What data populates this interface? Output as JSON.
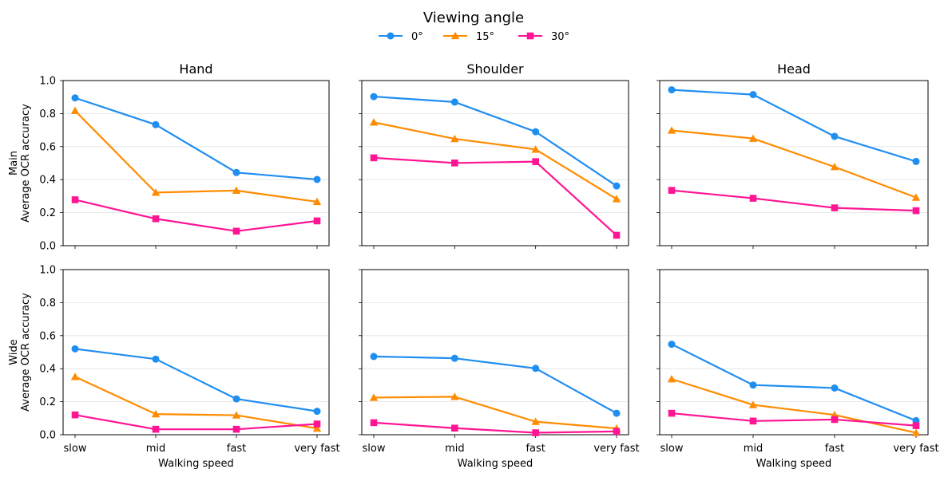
{
  "legend": {
    "title": "Viewing angle",
    "entries": [
      {
        "label": "0°",
        "color": "#1f8ef1",
        "marker": "circle"
      },
      {
        "label": "15°",
        "color": "#ff8c00",
        "marker": "triangle"
      },
      {
        "label": "30°",
        "color": "#ff1493",
        "marker": "square"
      }
    ]
  },
  "chart_data": {
    "type": "line",
    "title": "Viewing angle",
    "categories": [
      "slow",
      "mid",
      "fast",
      "very fast"
    ],
    "xlabel": "Walking speed",
    "ylim": [
      0,
      1
    ],
    "yticks": [
      "0.0",
      "0.2",
      "0.4",
      "0.6",
      "0.8",
      "1.0"
    ],
    "columns": [
      "Hand",
      "Shoulder",
      "Head"
    ],
    "rows": [
      {
        "name": "Main",
        "ylabel": "Average OCR accuracy"
      },
      {
        "name": "Wide",
        "ylabel": "Average OCR accuracy"
      }
    ],
    "panels": [
      {
        "row": "Main",
        "column": "Hand",
        "series": [
          {
            "name": "0°",
            "values": [
              0.895,
              0.733,
              0.443,
              0.401
            ]
          },
          {
            "name": "15°",
            "values": [
              0.817,
              0.322,
              0.334,
              0.266
            ]
          },
          {
            "name": "30°",
            "values": [
              0.278,
              0.163,
              0.088,
              0.15
            ]
          }
        ]
      },
      {
        "row": "Main",
        "column": "Shoulder",
        "series": [
          {
            "name": "0°",
            "values": [
              0.903,
              0.87,
              0.69,
              0.362
            ]
          },
          {
            "name": "15°",
            "values": [
              0.747,
              0.647,
              0.583,
              0.283
            ]
          },
          {
            "name": "30°",
            "values": [
              0.532,
              0.501,
              0.509,
              0.063
            ]
          }
        ]
      },
      {
        "row": "Main",
        "column": "Head",
        "series": [
          {
            "name": "0°",
            "values": [
              0.944,
              0.915,
              0.662,
              0.51
            ]
          },
          {
            "name": "15°",
            "values": [
              0.698,
              0.649,
              0.477,
              0.292
            ]
          },
          {
            "name": "30°",
            "values": [
              0.335,
              0.287,
              0.229,
              0.212
            ]
          }
        ]
      },
      {
        "row": "Wide",
        "column": "Hand",
        "series": [
          {
            "name": "0°",
            "values": [
              0.52,
              0.458,
              0.217,
              0.142
            ]
          },
          {
            "name": "15°",
            "values": [
              0.351,
              0.125,
              0.118,
              0.038
            ]
          },
          {
            "name": "30°",
            "values": [
              0.12,
              0.033,
              0.033,
              0.065
            ]
          }
        ]
      },
      {
        "row": "Wide",
        "column": "Shoulder",
        "series": [
          {
            "name": "0°",
            "values": [
              0.474,
              0.463,
              0.402,
              0.13
            ]
          },
          {
            "name": "15°",
            "values": [
              0.225,
              0.23,
              0.079,
              0.038
            ]
          },
          {
            "name": "30°",
            "values": [
              0.073,
              0.04,
              0.012,
              0.02
            ]
          }
        ]
      },
      {
        "row": "Wide",
        "column": "Head",
        "series": [
          {
            "name": "0°",
            "values": [
              0.548,
              0.301,
              0.283,
              0.085
            ]
          },
          {
            "name": "15°",
            "values": [
              0.337,
              0.181,
              0.12,
              0.012
            ]
          },
          {
            "name": "30°",
            "values": [
              0.13,
              0.083,
              0.092,
              0.055
            ]
          }
        ]
      }
    ]
  }
}
